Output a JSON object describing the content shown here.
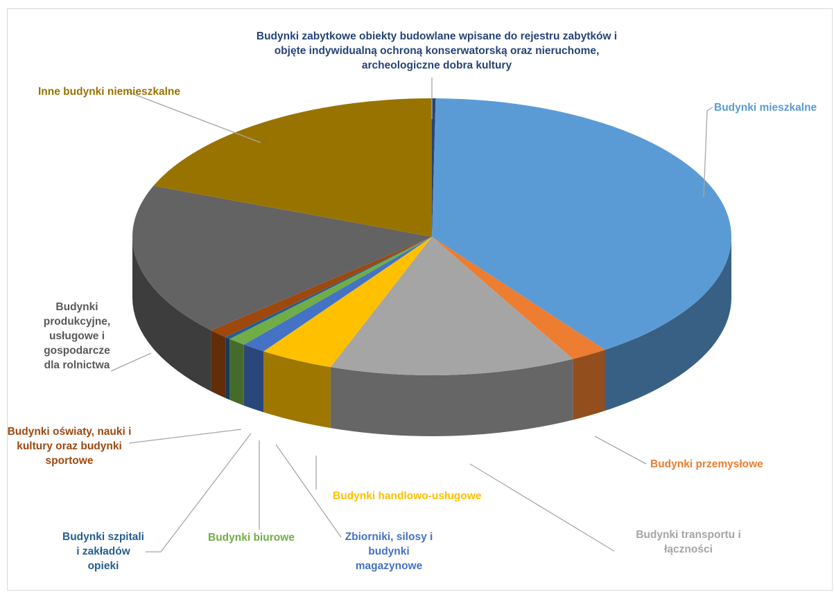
{
  "chart_data": {
    "type": "pie",
    "style": "3d",
    "title": "",
    "slices": [
      {
        "label": "Budynki zabytkowe obiekty budowlane wpisane do rejestru zabytków i objęte indywidualną ochroną konserwatorską oraz nieruchome, archeologiczne dobra kultury",
        "value": 0.2,
        "color": "#264478"
      },
      {
        "label": "Budynki mieszkalne",
        "value": 40.0,
        "color": "#5b9bd5"
      },
      {
        "label": "Budynki przemysłowe",
        "value": 2.0,
        "color": "#ed7d31"
      },
      {
        "label": "Budynki transportu i łączności",
        "value": 13.3,
        "color": "#a5a5a5"
      },
      {
        "label": "Budynki handlowo-usługowe",
        "value": 4.0,
        "color": "#ffc000"
      },
      {
        "label": "Zbiorniki, silosy i budynki magazynowe",
        "value": 1.3,
        "color": "#4472c4"
      },
      {
        "label": "Budynki biurowe",
        "value": 1.0,
        "color": "#70ad47"
      },
      {
        "label": "Budynki szpitali i zakładów opieki",
        "value": 0.3,
        "color": "#255e91"
      },
      {
        "label": "Budynki oświaty, nauki i kultury oraz budynki sportowe",
        "value": 1.1,
        "color": "#9e480e"
      },
      {
        "label": "Budynki produkcyjne, usługowe i gospodarcze dla rolnictwa",
        "value": 17.8,
        "color": "#636363"
      },
      {
        "label": "Inne budynki niemieszkalne",
        "value": 19.0,
        "color": "#997300"
      }
    ],
    "legend": "none"
  }
}
